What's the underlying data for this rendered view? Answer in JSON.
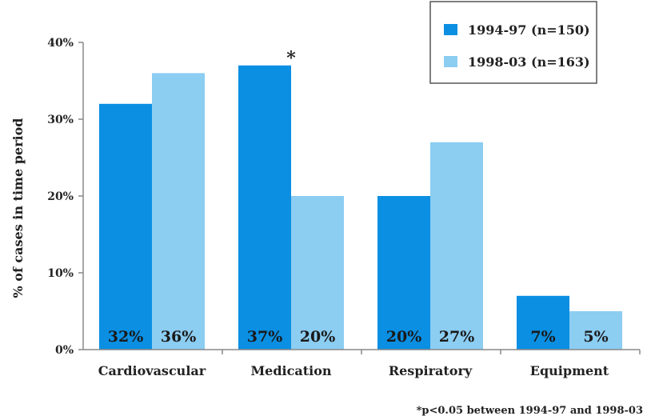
{
  "chart_data": {
    "type": "bar",
    "categories": [
      "Cardiovascular",
      "Medication",
      "Respiratory",
      "Equipment"
    ],
    "series": [
      {
        "name": "1994-97 (n=150)",
        "values": [
          32,
          37,
          20,
          7
        ],
        "labels": [
          "32%",
          "37%",
          "20%",
          "7%"
        ],
        "color": "#0a8fe3"
      },
      {
        "name": "1998-03 (n=163)",
        "values": [
          36,
          20,
          27,
          5
        ],
        "labels": [
          "36%",
          "20%",
          "27%",
          "5%"
        ],
        "color": "#8ccdf2"
      }
    ],
    "ylabel": "% of cases in time period",
    "ylim": [
      0,
      40
    ],
    "yticks": [
      "0%",
      "10%",
      "20%",
      "30%",
      "40%"
    ],
    "annotation": "*",
    "annotated_bar": {
      "series": 0,
      "category": 1
    },
    "legend_position": "top-right",
    "footnote": "*p<0.05 between 1994-97 and 1998-03",
    "grid": false
  }
}
